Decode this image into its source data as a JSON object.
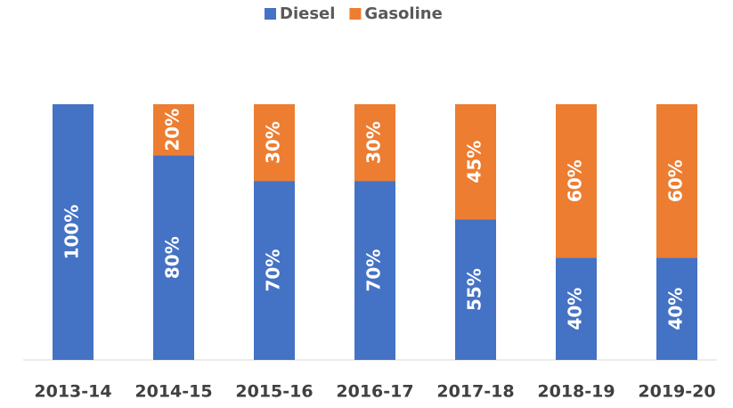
{
  "chart_data": {
    "type": "stacked_bar",
    "categories": [
      "2013-14",
      "2014-15",
      "2015-16",
      "2016-17",
      "2017-18",
      "2018-19",
      "2019-20"
    ],
    "series": [
      {
        "name": "Diesel",
        "color": "#4472c4",
        "values": [
          100,
          80,
          70,
          70,
          55,
          40,
          40
        ],
        "value_labels": [
          "100%",
          "80%",
          "70%",
          "70%",
          "55%",
          "40%",
          "40%"
        ]
      },
      {
        "name": "Gasoline",
        "color": "#ed7d31",
        "values": [
          0,
          20,
          30,
          30,
          45,
          60,
          60
        ],
        "value_labels": [
          null,
          "20%",
          "30%",
          "30%",
          "45%",
          "60%",
          "60%"
        ]
      }
    ],
    "ylim": [
      0,
      100
    ],
    "legend": "top"
  }
}
